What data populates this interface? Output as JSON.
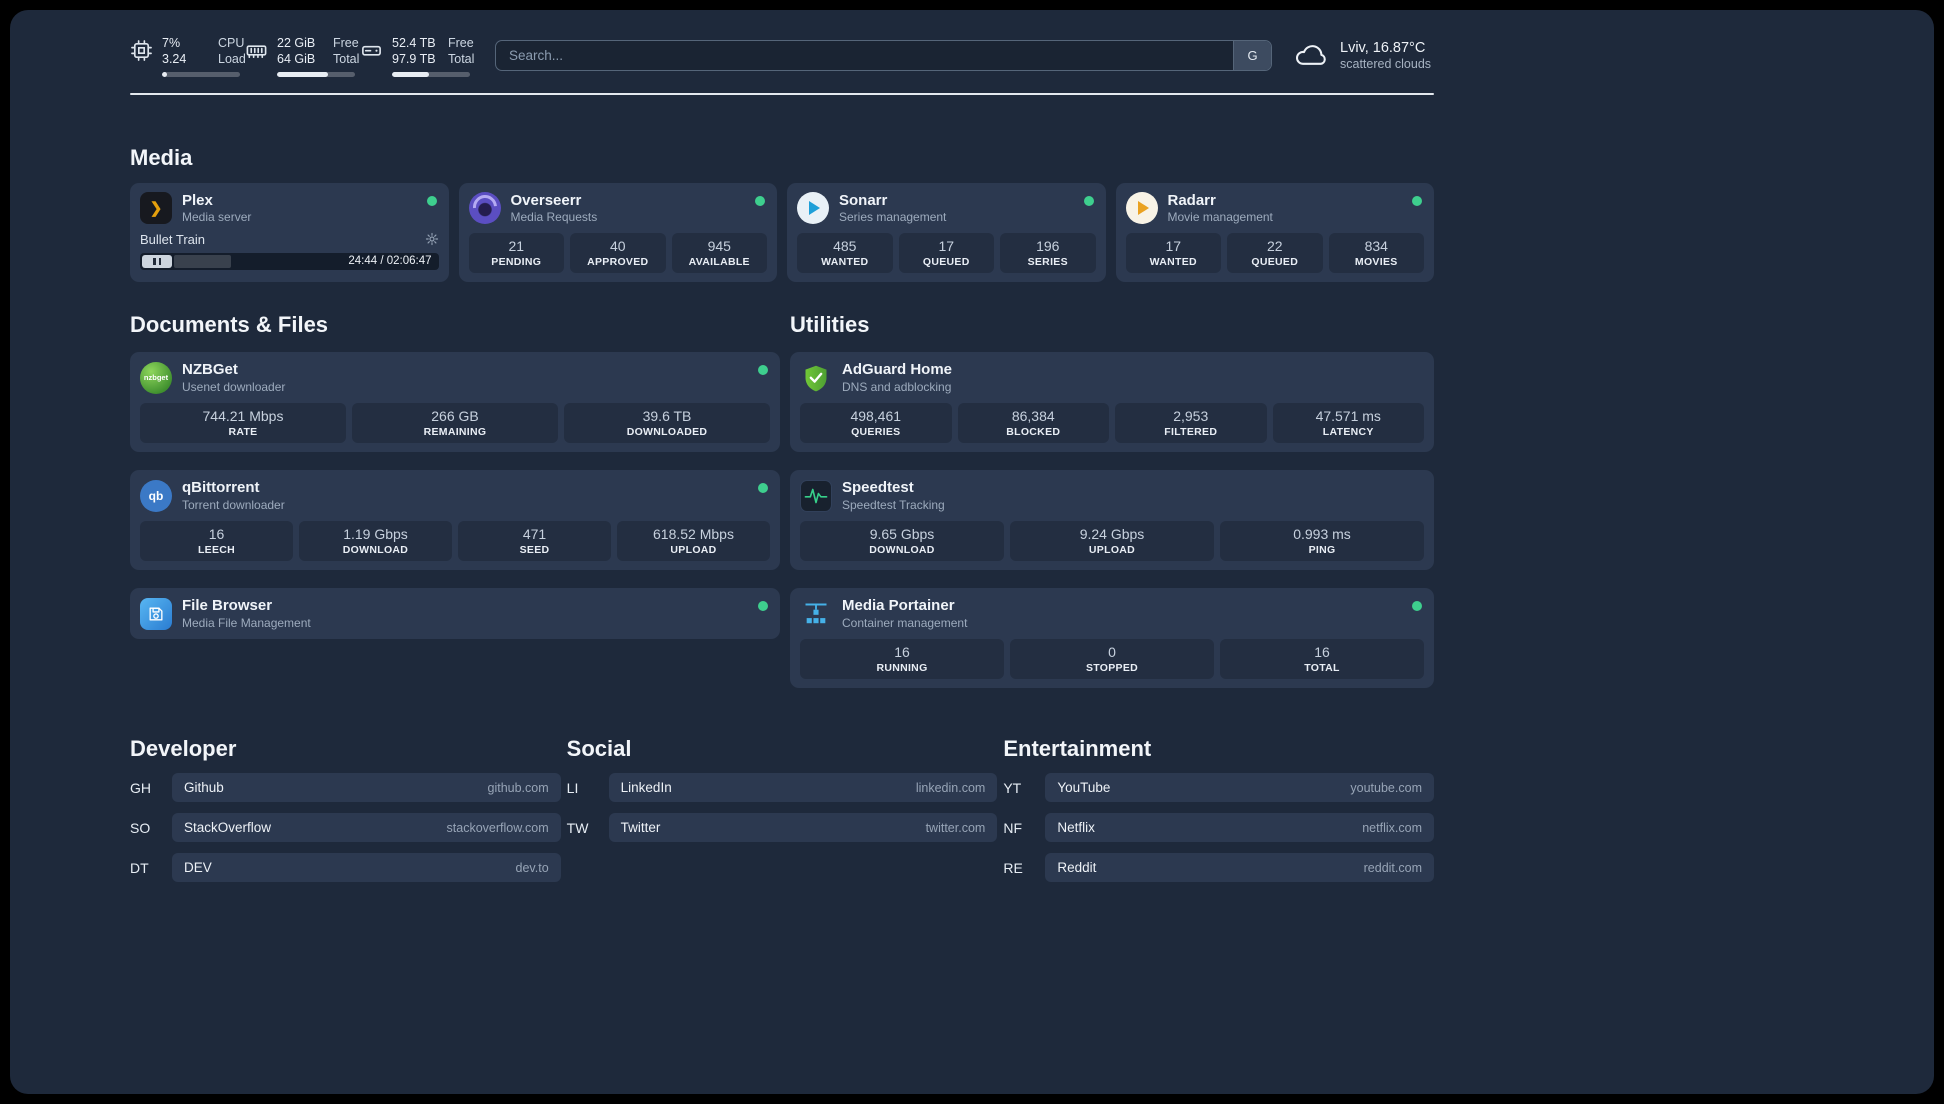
{
  "topbar": {
    "resources": [
      {
        "value_top": "7%",
        "value_bottom": "3.24",
        "label_top": "CPU",
        "label_bottom": "Load",
        "percent": 7
      },
      {
        "value_top": "22 GiB",
        "value_bottom": "64 GiB",
        "label_top": "Free",
        "label_bottom": "Total",
        "percent": 66
      },
      {
        "value_top": "52.4 TB",
        "value_bottom": "97.9 TB",
        "label_top": "Free",
        "label_bottom": "Total",
        "percent": 47
      }
    ],
    "search": {
      "placeholder": "Search...",
      "provider_label": "G"
    },
    "weather": {
      "location": "Lviv, 16.87°C",
      "condition": "scattered clouds"
    }
  },
  "media": {
    "title": "Media",
    "plex": {
      "name": "Plex",
      "subtitle": "Media server",
      "icon_text": "❯",
      "now_playing": "Bullet Train",
      "time": "24:44 / 02:06:47",
      "progress_percent": 19.5
    },
    "overseerr": {
      "name": "Overseerr",
      "subtitle": "Media Requests",
      "stats": [
        {
          "value": "21",
          "label": "PENDING"
        },
        {
          "value": "40",
          "label": "APPROVED"
        },
        {
          "value": "945",
          "label": "AVAILABLE"
        }
      ]
    },
    "sonarr": {
      "name": "Sonarr",
      "subtitle": "Series management",
      "stats": [
        {
          "value": "485",
          "label": "WANTED"
        },
        {
          "value": "17",
          "label": "QUEUED"
        },
        {
          "value": "196",
          "label": "SERIES"
        }
      ]
    },
    "radarr": {
      "name": "Radarr",
      "subtitle": "Movie management",
      "stats": [
        {
          "value": "17",
          "label": "WANTED"
        },
        {
          "value": "22",
          "label": "QUEUED"
        },
        {
          "value": "834",
          "label": "MOVIES"
        }
      ]
    }
  },
  "documents": {
    "title": "Documents & Files",
    "nzbget": {
      "name": "NZBGet",
      "subtitle": "Usenet downloader",
      "icon_text": "nzbget",
      "stats": [
        {
          "value": "744.21 Mbps",
          "label": "RATE"
        },
        {
          "value": "266 GB",
          "label": "REMAINING"
        },
        {
          "value": "39.6 TB",
          "label": "DOWNLOADED"
        }
      ]
    },
    "qbittorrent": {
      "name": "qBittorrent",
      "subtitle": "Torrent downloader",
      "icon_text": "qb",
      "stats": [
        {
          "value": "16",
          "label": "LEECH"
        },
        {
          "value": "1.19 Gbps",
          "label": "DOWNLOAD"
        },
        {
          "value": "471",
          "label": "SEED"
        },
        {
          "value": "618.52 Mbps",
          "label": "UPLOAD"
        }
      ]
    },
    "filebrowser": {
      "name": "File Browser",
      "subtitle": "Media File Management"
    }
  },
  "utilities": {
    "title": "Utilities",
    "adguard": {
      "name": "AdGuard Home",
      "subtitle": "DNS and adblocking",
      "stats": [
        {
          "value": "498,461",
          "label": "QUERIES"
        },
        {
          "value": "86,384",
          "label": "BLOCKED"
        },
        {
          "value": "2,953",
          "label": "FILTERED"
        },
        {
          "value": "47.571 ms",
          "label": "LATENCY"
        }
      ]
    },
    "speedtest": {
      "name": "Speedtest",
      "subtitle": "Speedtest Tracking",
      "stats": [
        {
          "value": "9.65 Gbps",
          "label": "DOWNLOAD"
        },
        {
          "value": "9.24 Gbps",
          "label": "UPLOAD"
        },
        {
          "value": "0.993 ms",
          "label": "PING"
        }
      ]
    },
    "portainer": {
      "name": "Media Portainer",
      "subtitle": "Container management",
      "stats": [
        {
          "value": "16",
          "label": "RUNNING"
        },
        {
          "value": "0",
          "label": "STOPPED"
        },
        {
          "value": "16",
          "label": "TOTAL"
        }
      ]
    }
  },
  "bookmarks": [
    {
      "title": "Developer",
      "items": [
        {
          "abbr": "GH",
          "name": "Github",
          "url": "github.com"
        },
        {
          "abbr": "SO",
          "name": "StackOverflow",
          "url": "stackoverflow.com"
        },
        {
          "abbr": "DT",
          "name": "DEV",
          "url": "dev.to"
        }
      ]
    },
    {
      "title": "Social",
      "items": [
        {
          "abbr": "LI",
          "name": "LinkedIn",
          "url": "linkedin.com"
        },
        {
          "abbr": "TW",
          "name": "Twitter",
          "url": "twitter.com"
        }
      ]
    },
    {
      "title": "Entertainment",
      "items": [
        {
          "abbr": "YT",
          "name": "YouTube",
          "url": "youtube.com"
        },
        {
          "abbr": "NF",
          "name": "Netflix",
          "url": "netflix.com"
        },
        {
          "abbr": "RE",
          "name": "Reddit",
          "url": "reddit.com"
        }
      ]
    }
  ]
}
